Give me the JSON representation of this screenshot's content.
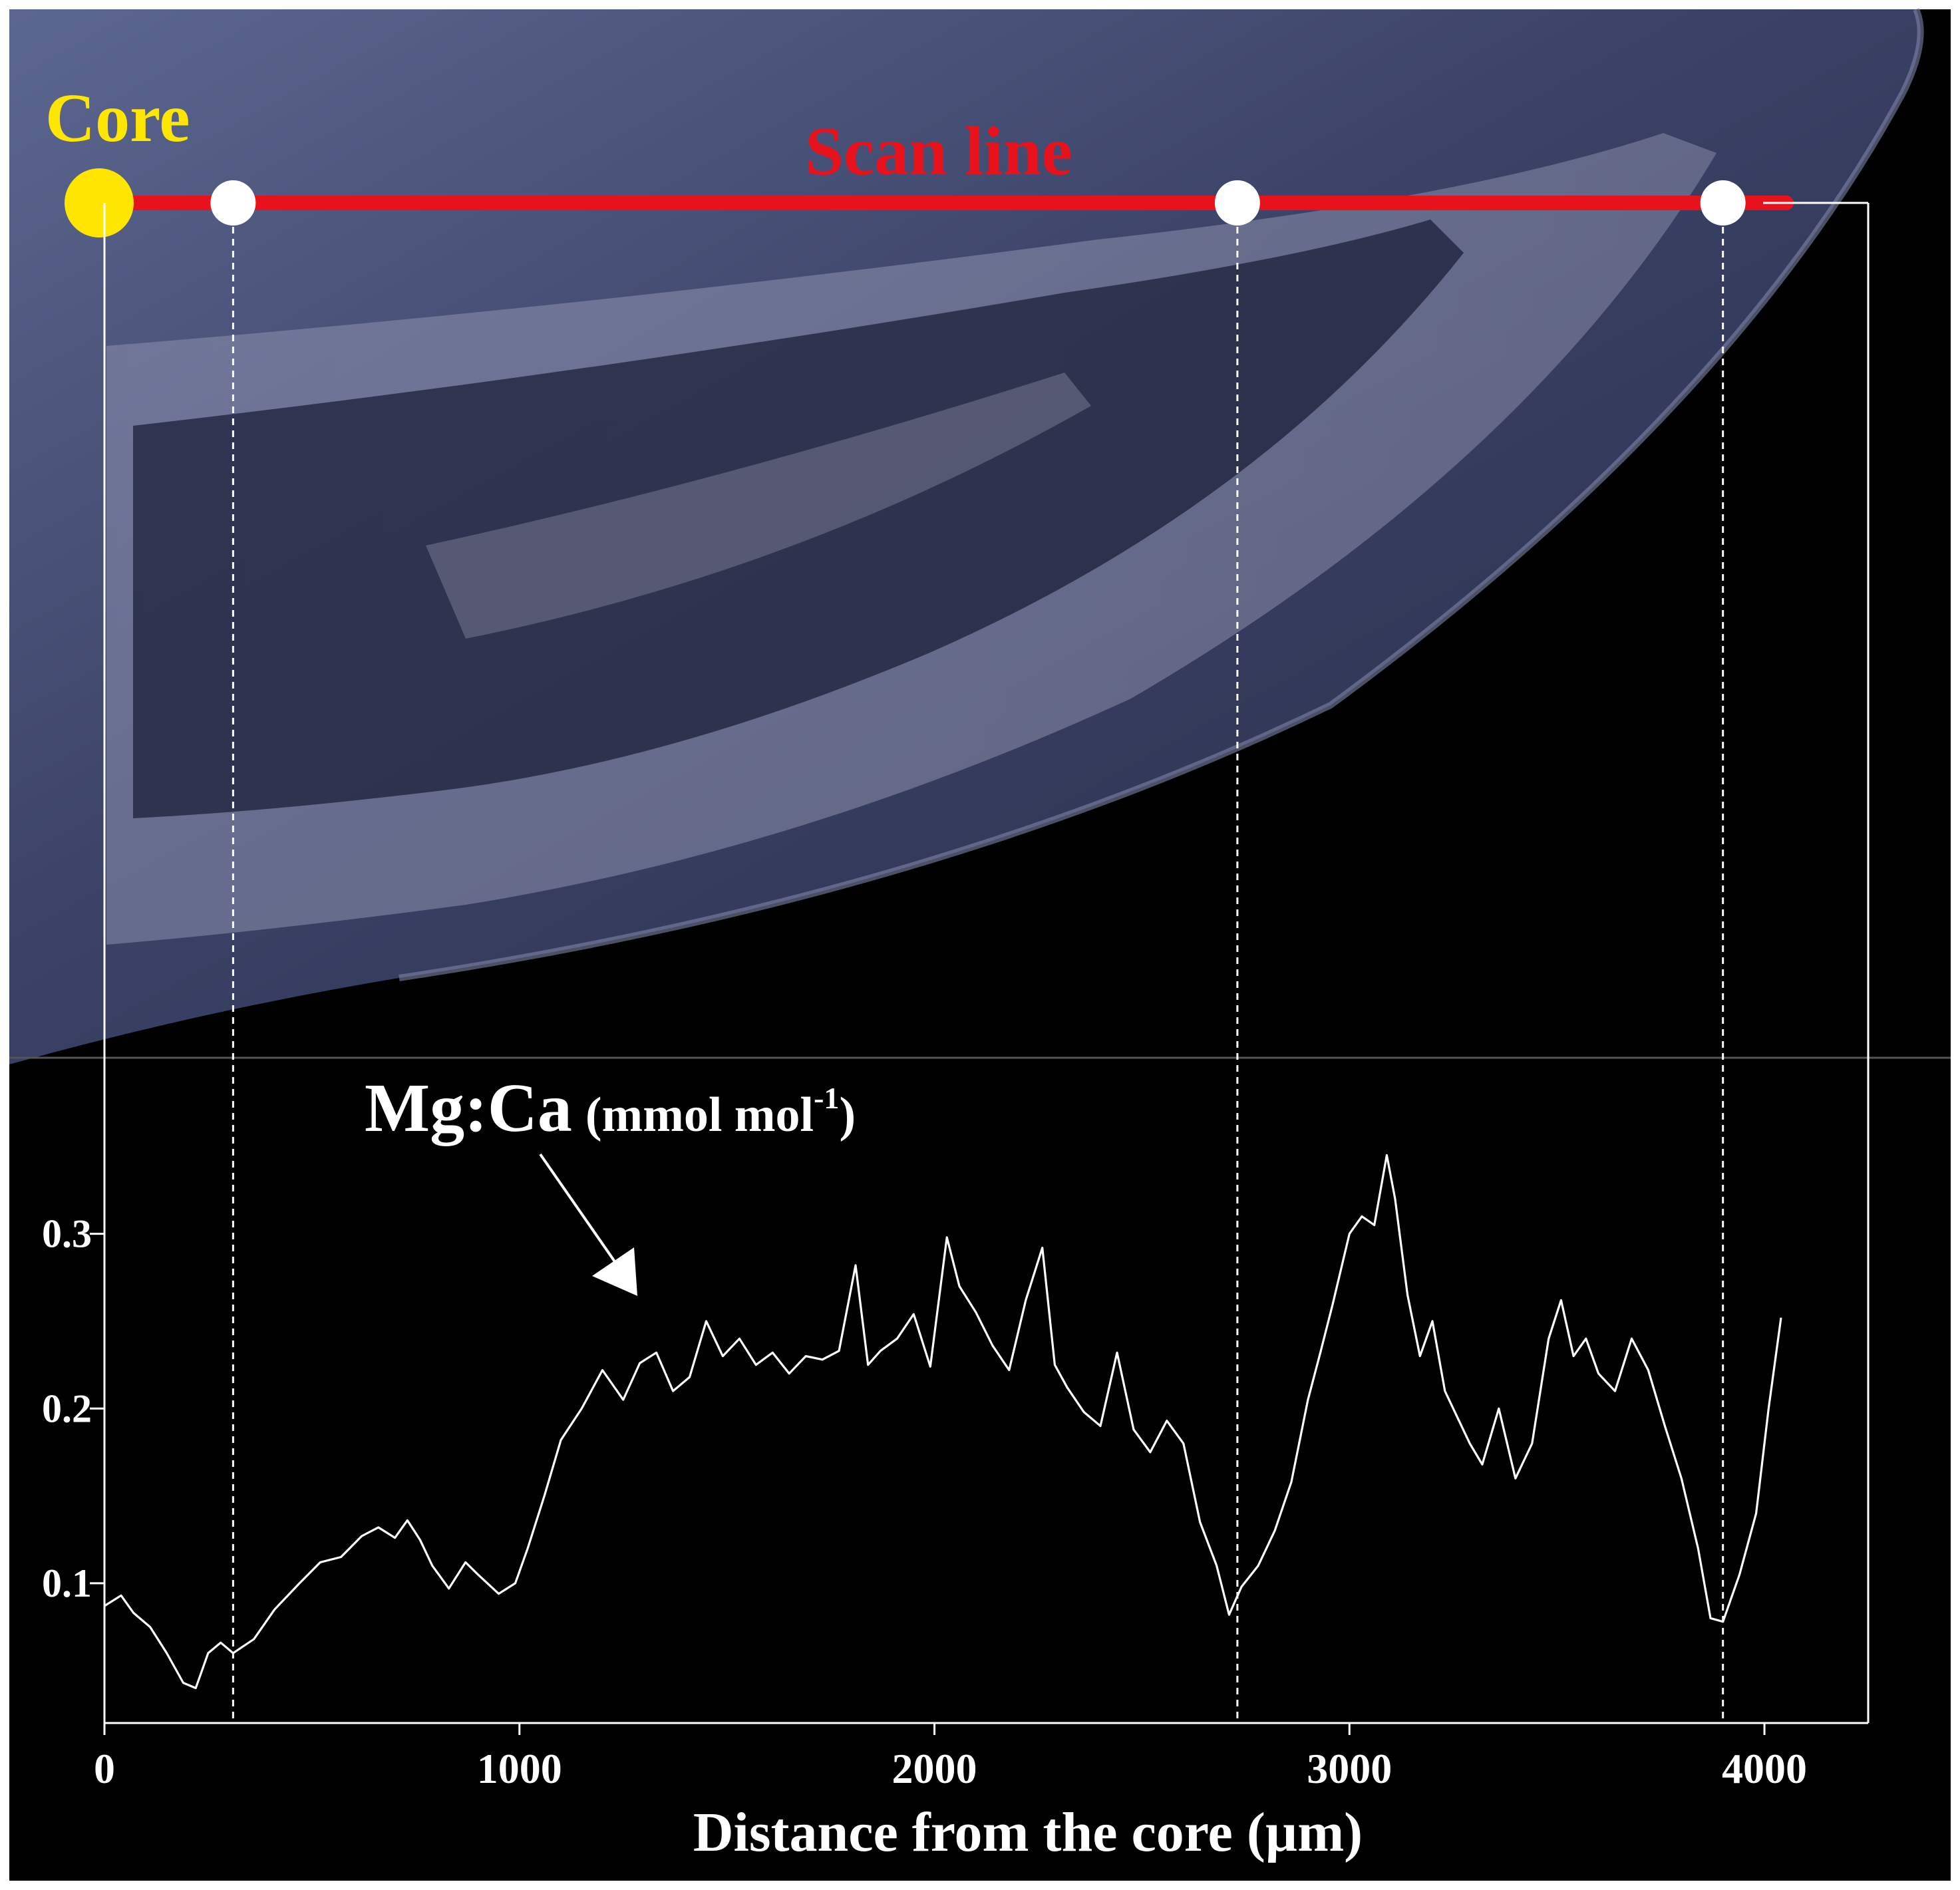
{
  "labels": {
    "core": "Core",
    "scan_line": "Scan line",
    "series_main": "Mg:Ca",
    "series_unit_prefix": "(mmol mol",
    "series_unit_sup": "-1",
    "series_unit_suffix": ")"
  },
  "colors": {
    "core_marker": "#ffe600",
    "scan_line": "#e8121d",
    "trace": "#ffffff",
    "background": "#000000",
    "otolith_tint": "#4a5478"
  },
  "chart_data": {
    "type": "line",
    "title": "",
    "xlabel": "Distance from the core (µm)",
    "ylabel": "Mg:Ca (mmol mol-1)",
    "xlim": [
      0,
      4250
    ],
    "ylim": [
      0.02,
      0.4
    ],
    "x_ticks": [
      0,
      1000,
      2000,
      3000,
      4000
    ],
    "x_tick_labels": [
      "0",
      "1000",
      "2000",
      "3000",
      "4000"
    ],
    "y_ticks": [
      0.1,
      0.2,
      0.3
    ],
    "y_tick_labels": [
      "0.1",
      "0.2",
      "0.3"
    ],
    "grid": false,
    "markers_um": [
      310,
      2730,
      3900
    ],
    "series": [
      {
        "name": "Mg:Ca",
        "x": [
          0,
          40,
          70,
          110,
          150,
          190,
          220,
          250,
          280,
          310,
          360,
          410,
          470,
          520,
          570,
          620,
          660,
          700,
          730,
          760,
          790,
          830,
          870,
          900,
          950,
          990,
          1020,
          1060,
          1100,
          1150,
          1200,
          1250,
          1290,
          1330,
          1370,
          1410,
          1450,
          1490,
          1530,
          1570,
          1610,
          1650,
          1690,
          1730,
          1770,
          1810,
          1840,
          1870,
          1910,
          1950,
          1990,
          2030,
          2060,
          2100,
          2140,
          2180,
          2220,
          2260,
          2290,
          2320,
          2360,
          2400,
          2440,
          2480,
          2520,
          2560,
          2600,
          2640,
          2680,
          2710,
          2740,
          2780,
          2820,
          2860,
          2900,
          2930,
          2960,
          3000,
          3030,
          3060,
          3090,
          3110,
          3140,
          3170,
          3200,
          3230,
          3260,
          3290,
          3320,
          3360,
          3400,
          3440,
          3480,
          3510,
          3540,
          3570,
          3600,
          3640,
          3680,
          3720,
          3760,
          3800,
          3840,
          3870,
          3900,
          3940,
          3980,
          4010,
          4040
        ],
        "values": [
          0.087,
          0.093,
          0.083,
          0.075,
          0.06,
          0.043,
          0.04,
          0.06,
          0.066,
          0.06,
          0.068,
          0.085,
          0.1,
          0.112,
          0.115,
          0.127,
          0.132,
          0.126,
          0.136,
          0.125,
          0.11,
          0.097,
          0.112,
          0.105,
          0.094,
          0.1,
          0.12,
          0.15,
          0.182,
          0.2,
          0.222,
          0.205,
          0.226,
          0.232,
          0.21,
          0.218,
          0.25,
          0.23,
          0.24,
          0.225,
          0.232,
          0.22,
          0.23,
          0.228,
          0.233,
          0.282,
          0.225,
          0.233,
          0.24,
          0.254,
          0.224,
          0.298,
          0.27,
          0.255,
          0.236,
          0.222,
          0.262,
          0.292,
          0.225,
          0.212,
          0.198,
          0.19,
          0.232,
          0.188,
          0.175,
          0.193,
          0.18,
          0.135,
          0.11,
          0.082,
          0.098,
          0.11,
          0.13,
          0.158,
          0.205,
          0.232,
          0.26,
          0.3,
          0.31,
          0.305,
          0.345,
          0.32,
          0.265,
          0.23,
          0.25,
          0.21,
          0.195,
          0.18,
          0.168,
          0.2,
          0.16,
          0.18,
          0.24,
          0.262,
          0.23,
          0.24,
          0.22,
          0.21,
          0.24,
          0.222,
          0.19,
          0.16,
          0.12,
          0.08,
          0.078,
          0.105,
          0.14,
          0.2,
          0.252
        ]
      }
    ]
  }
}
